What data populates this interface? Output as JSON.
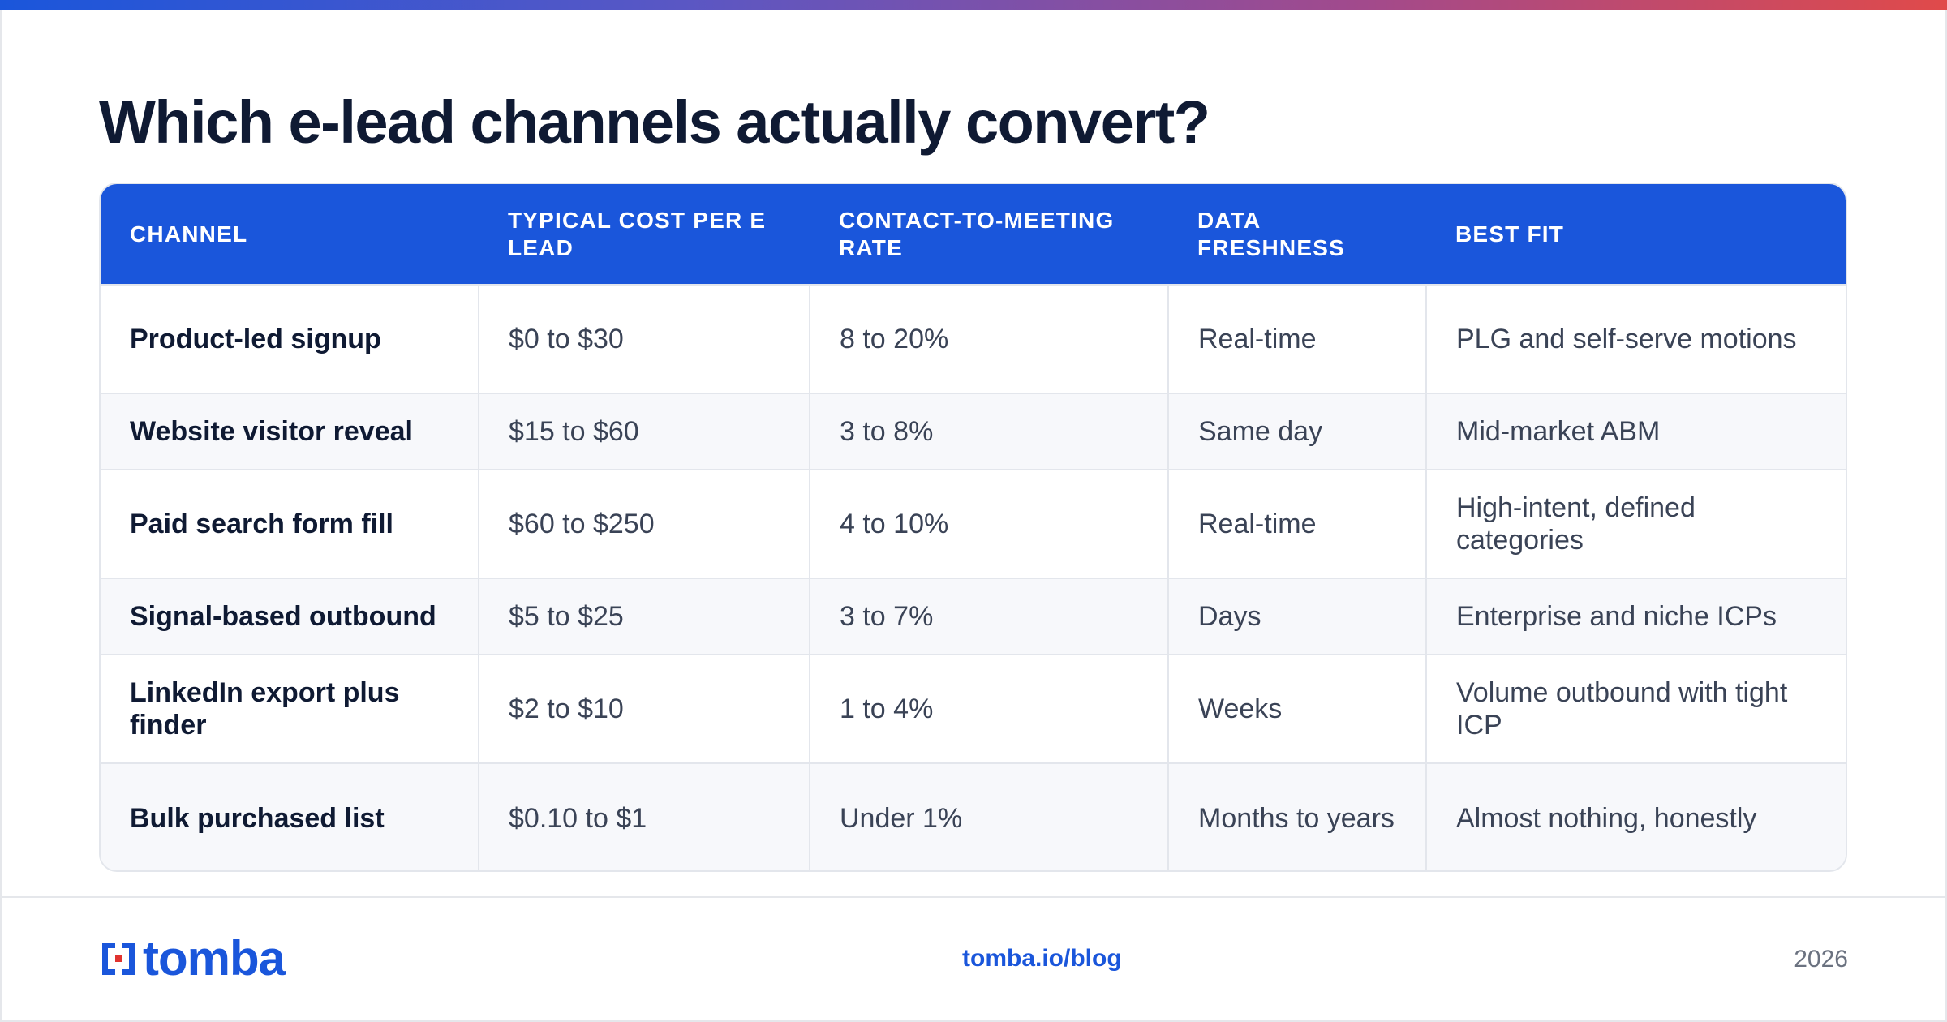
{
  "page": {
    "title": "Which e-lead channels actually convert?"
  },
  "colors": {
    "brand": "#1a56db",
    "header_text": "#ffffff",
    "gradient_end": "#e04a4a"
  },
  "table": {
    "headers": [
      "CHANNEL",
      "TYPICAL COST PER E LEAD",
      "CONTACT-TO-MEETING RATE",
      "DATA FRESHNESS",
      "BEST FIT"
    ],
    "rows": [
      [
        "Product-led signup",
        "$0 to $30",
        "8 to 20%",
        "Real-time",
        "PLG and self-serve motions"
      ],
      [
        "Website visitor reveal",
        "$15 to $60",
        "3 to 8%",
        "Same day",
        "Mid-market ABM"
      ],
      [
        "Paid search form fill",
        "$60 to $250",
        "4 to 10%",
        "Real-time",
        "High-intent, defined categories"
      ],
      [
        "Signal-based outbound",
        "$5 to $25",
        "3 to 7%",
        "Days",
        "Enterprise and niche ICPs"
      ],
      [
        "LinkedIn export plus finder",
        "$2 to $10",
        "1 to 4%",
        "Weeks",
        "Volume outbound with tight ICP"
      ],
      [
        "Bulk purchased list",
        "$0.10 to $1",
        "Under 1%",
        "Months to years",
        "Almost nothing, honestly"
      ]
    ]
  },
  "footer": {
    "logo_text": "tomba",
    "logo_icon": "tomba-logo-icon",
    "url": "tomba.io/blog",
    "year": "2026"
  }
}
